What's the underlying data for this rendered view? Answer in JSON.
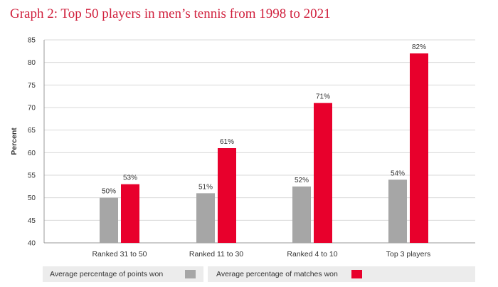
{
  "title": "Graph 2: Top 50 players in men’s tennis from 1998 to 2021",
  "colors": {
    "points": "#a6a6a6",
    "matches": "#e8002c",
    "grid": "#d9d9d9",
    "title": "#d01f3c"
  },
  "chart_data": {
    "type": "bar",
    "title": "Graph 2: Top 50 players in men’s tennis from 1998 to 2021",
    "xlabel": "",
    "ylabel": "Percent",
    "ylim": [
      40,
      85
    ],
    "yticks": [
      40,
      45,
      50,
      55,
      60,
      65,
      70,
      75,
      80,
      85
    ],
    "grid": true,
    "legend_position": "bottom",
    "categories": [
      "Ranked 31 to 50",
      "Ranked 11 to 30",
      "Ranked 4 to 10",
      "Top 3 players"
    ],
    "series": [
      {
        "name": "Average percentage of points won",
        "values": [
          50,
          51,
          52.5,
          54
        ],
        "labels": [
          "50%",
          "51%",
          "52%",
          "54%"
        ]
      },
      {
        "name": "Average percentage of matches won",
        "values": [
          53,
          61,
          71,
          82
        ],
        "labels": [
          "53%",
          "61%",
          "71%",
          "82%"
        ]
      }
    ]
  }
}
